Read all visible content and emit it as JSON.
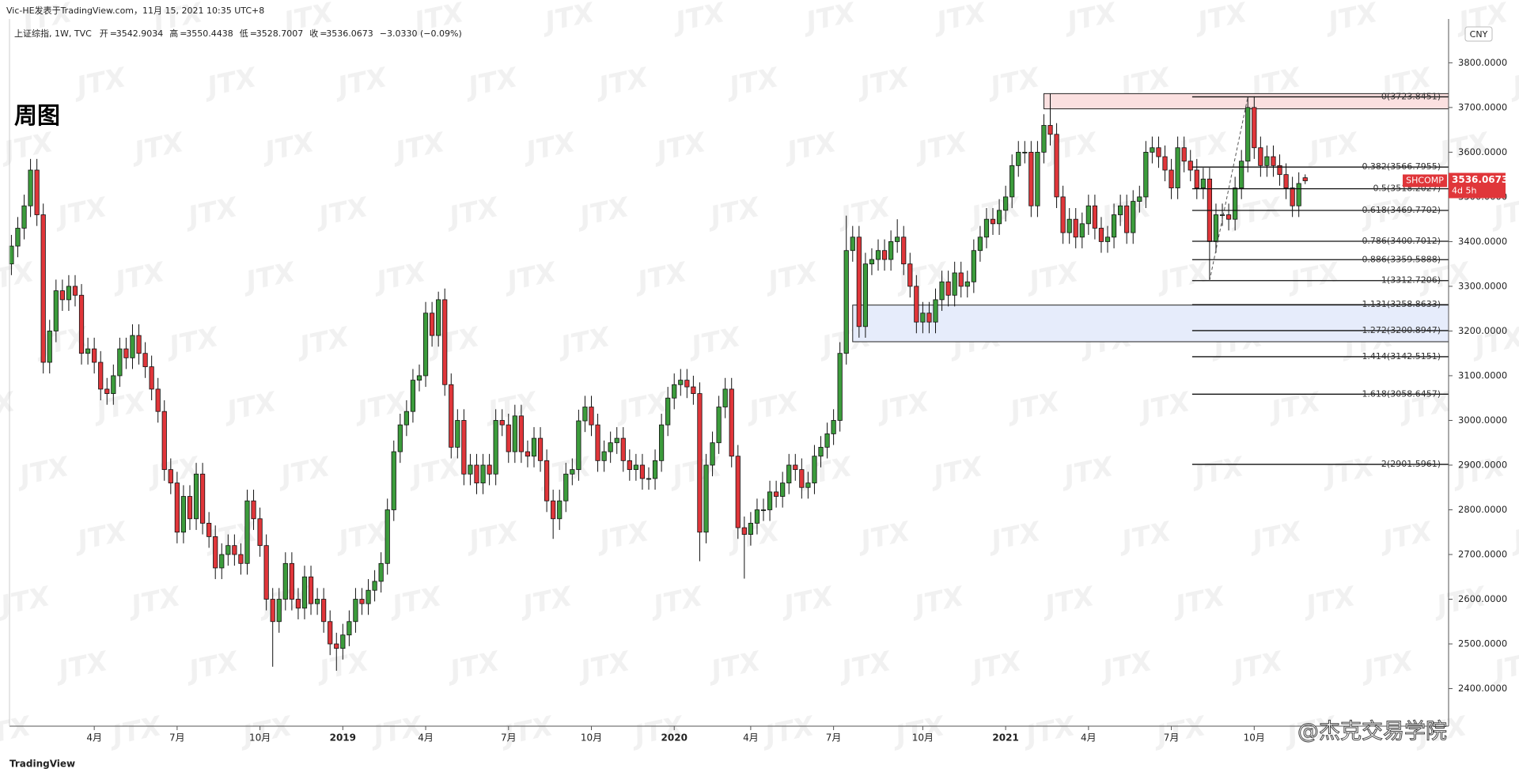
{
  "header": {
    "byline": "Vic-HE发表于TradingView.com，11月 15, 2021 10:35 UTC+8",
    "symbol": "上证综指, 1W, TVC",
    "open_label": "开",
    "high_label": "高",
    "low_label": "低",
    "close_label": "收",
    "change": "−3.0330 (−0.09%)",
    "footer": "TradingView",
    "credit": "@杰克交易学院"
  },
  "watermark": "JTX",
  "chart_data": {
    "type": "candlestick",
    "title": "周图",
    "currency": "CNY",
    "symbol_tag": "SHCOMP",
    "countdown": "4d 5h",
    "up_color": "#3c9c3c",
    "down_color": "#e0363a",
    "wick_color": "#111111",
    "xlim": [
      -0.3,
      225.5
    ],
    "ylim": [
      2316,
      3898
    ],
    "xticks": [
      {
        "value": 13,
        "label": "4月"
      },
      {
        "value": 26,
        "label": "7月"
      },
      {
        "value": 39,
        "label": "10月"
      },
      {
        "value": 52,
        "label": "2019"
      },
      {
        "value": 65,
        "label": "4月"
      },
      {
        "value": 78,
        "label": "7月"
      },
      {
        "value": 91,
        "label": "10月"
      },
      {
        "value": 104,
        "label": "2020"
      },
      {
        "value": 116,
        "label": "4月"
      },
      {
        "value": 129,
        "label": "7月"
      },
      {
        "value": 143,
        "label": "10月"
      },
      {
        "value": 156,
        "label": "2021"
      },
      {
        "value": 169,
        "label": "4月"
      },
      {
        "value": 182,
        "label": "7月"
      },
      {
        "value": 195,
        "label": "10月"
      }
    ],
    "yticks": [
      {
        "value": 2400,
        "label": "2400.0000"
      },
      {
        "value": 2500,
        "label": "2500.0000"
      },
      {
        "value": 2600,
        "label": "2600.0000"
      },
      {
        "value": 2700,
        "label": "2700.0000"
      },
      {
        "value": 2800,
        "label": "2800.0000"
      },
      {
        "value": 2900,
        "label": "2900.0000"
      },
      {
        "value": 3000,
        "label": "3000.0000"
      },
      {
        "value": 3100,
        "label": "3100.0000"
      },
      {
        "value": 3200,
        "label": "3200.0000"
      },
      {
        "value": 3300,
        "label": "3300.0000"
      },
      {
        "value": 3400,
        "label": "3400.0000"
      },
      {
        "value": 3500,
        "label": "3500.0000"
      },
      {
        "value": 3600,
        "label": "3600.0000"
      },
      {
        "value": 3700,
        "label": "3700.0000"
      },
      {
        "value": 3800,
        "label": "3800.0000"
      }
    ],
    "zones": [
      {
        "start": 162,
        "from": 3697,
        "to": 3731,
        "color": "#fbe0e0"
      },
      {
        "start": 132,
        "from": 3176,
        "to": 3258,
        "color": "#e6ecfb"
      }
    ],
    "fib_anchor": [
      188,
      194
    ],
    "fib_levels": [
      {
        "price": 3723.8451,
        "label": "0(3723.8451)"
      },
      {
        "price": 3566.7955,
        "label": "0.382(3566.7955)"
      },
      {
        "price": 3518.2027,
        "label": "0.5(3518.2027)"
      },
      {
        "price": 3469.7702,
        "label": "0.618(3469.7702)"
      },
      {
        "price": 3400.7012,
        "label": "0.786(3400.7012)"
      },
      {
        "price": 3359.5888,
        "label": "0.886(3359.5888)"
      },
      {
        "price": 3312.7206,
        "label": "1(3312.7206)"
      },
      {
        "price": 3258.8633,
        "label": "1.131(3258.8633)"
      },
      {
        "price": 3200.8947,
        "label": "1.272(3200.8947)"
      },
      {
        "price": 3142.5151,
        "label": "1.414(3142.5151)"
      },
      {
        "price": 3058.6457,
        "label": "1.618(3058.6457)"
      },
      {
        "price": 2901.5961,
        "label": "2(2901.5961)"
      }
    ],
    "candles": [
      [
        3350,
        3415,
        3325,
        3390
      ],
      [
        3390,
        3455,
        3365,
        3430
      ],
      [
        3430,
        3505,
        3405,
        3480
      ],
      [
        3480,
        3585,
        3455,
        3560
      ],
      [
        3560,
        3585,
        3435,
        3460
      ],
      [
        3460,
        3485,
        3105,
        3130
      ],
      [
        3130,
        3225,
        3105,
        3200
      ],
      [
        3200,
        3315,
        3175,
        3290
      ],
      [
        3290,
        3315,
        3245,
        3270
      ],
      [
        3270,
        3325,
        3245,
        3300
      ],
      [
        3300,
        3325,
        3255,
        3280
      ],
      [
        3280,
        3305,
        3125,
        3150
      ],
      [
        3150,
        3185,
        3125,
        3160
      ],
      [
        3160,
        3185,
        3105,
        3130
      ],
      [
        3130,
        3155,
        3045,
        3070
      ],
      [
        3070,
        3095,
        3035,
        3060
      ],
      [
        3060,
        3125,
        3035,
        3100
      ],
      [
        3100,
        3185,
        3075,
        3160
      ],
      [
        3160,
        3185,
        3115,
        3140
      ],
      [
        3140,
        3215,
        3115,
        3190
      ],
      [
        3190,
        3215,
        3125,
        3150
      ],
      [
        3150,
        3175,
        3095,
        3120
      ],
      [
        3120,
        3145,
        3045,
        3070
      ],
      [
        3070,
        3095,
        2995,
        3020
      ],
      [
        3020,
        3045,
        2865,
        2890
      ],
      [
        2890,
        2915,
        2835,
        2860
      ],
      [
        2860,
        2885,
        2725,
        2750
      ],
      [
        2750,
        2855,
        2725,
        2830
      ],
      [
        2830,
        2855,
        2755,
        2780
      ],
      [
        2780,
        2905,
        2755,
        2880
      ],
      [
        2880,
        2905,
        2745,
        2770
      ],
      [
        2770,
        2795,
        2715,
        2740
      ],
      [
        2740,
        2765,
        2645,
        2670
      ],
      [
        2670,
        2725,
        2645,
        2700
      ],
      [
        2700,
        2745,
        2675,
        2720
      ],
      [
        2720,
        2745,
        2675,
        2700
      ],
      [
        2700,
        2725,
        2655,
        2680
      ],
      [
        2680,
        2845,
        2655,
        2820
      ],
      [
        2820,
        2845,
        2755,
        2780
      ],
      [
        2780,
        2805,
        2695,
        2720
      ],
      [
        2720,
        2745,
        2575,
        2600
      ],
      [
        2600,
        2625,
        2449,
        2550
      ],
      [
        2550,
        2625,
        2525,
        2600
      ],
      [
        2600,
        2705,
        2575,
        2680
      ],
      [
        2680,
        2705,
        2575,
        2600
      ],
      [
        2600,
        2625,
        2555,
        2580
      ],
      [
        2580,
        2675,
        2555,
        2650
      ],
      [
        2650,
        2675,
        2565,
        2590
      ],
      [
        2590,
        2625,
        2565,
        2600
      ],
      [
        2600,
        2625,
        2525,
        2550
      ],
      [
        2550,
        2575,
        2475,
        2500
      ],
      [
        2500,
        2525,
        2440,
        2490
      ],
      [
        2490,
        2545,
        2465,
        2520
      ],
      [
        2520,
        2575,
        2495,
        2550
      ],
      [
        2550,
        2625,
        2525,
        2600
      ],
      [
        2600,
        2625,
        2565,
        2590
      ],
      [
        2590,
        2645,
        2565,
        2620
      ],
      [
        2620,
        2665,
        2595,
        2640
      ],
      [
        2640,
        2705,
        2615,
        2680
      ],
      [
        2680,
        2825,
        2655,
        2800
      ],
      [
        2800,
        2955,
        2775,
        2930
      ],
      [
        2930,
        3015,
        2905,
        2990
      ],
      [
        2990,
        3045,
        2965,
        3020
      ],
      [
        3020,
        3115,
        2995,
        3090
      ],
      [
        3090,
        3125,
        3065,
        3100
      ],
      [
        3100,
        3265,
        3075,
        3240
      ],
      [
        3240,
        3265,
        3165,
        3190
      ],
      [
        3190,
        3288,
        3165,
        3270
      ],
      [
        3270,
        3295,
        3055,
        3080
      ],
      [
        3080,
        3105,
        2915,
        2940
      ],
      [
        2940,
        3025,
        2915,
        3000
      ],
      [
        3000,
        3025,
        2855,
        2880
      ],
      [
        2880,
        2925,
        2855,
        2900
      ],
      [
        2900,
        2925,
        2835,
        2860
      ],
      [
        2860,
        2925,
        2835,
        2900
      ],
      [
        2900,
        2925,
        2855,
        2880
      ],
      [
        2880,
        3025,
        2855,
        3000
      ],
      [
        3000,
        3025,
        2965,
        2990
      ],
      [
        2990,
        3015,
        2905,
        2930
      ],
      [
        2930,
        3035,
        2905,
        3010
      ],
      [
        3010,
        3035,
        2905,
        2930
      ],
      [
        2930,
        2955,
        2895,
        2920
      ],
      [
        2920,
        2985,
        2895,
        2960
      ],
      [
        2960,
        2985,
        2885,
        2910
      ],
      [
        2910,
        2935,
        2795,
        2820
      ],
      [
        2820,
        2845,
        2735,
        2780
      ],
      [
        2780,
        2845,
        2755,
        2820
      ],
      [
        2820,
        2905,
        2795,
        2880
      ],
      [
        2880,
        2915,
        2855,
        2890
      ],
      [
        2890,
        3024,
        2865,
        2999
      ],
      [
        2999,
        3055,
        2974,
        3030
      ],
      [
        3030,
        3055,
        2965,
        2990
      ],
      [
        2990,
        3015,
        2885,
        2910
      ],
      [
        2910,
        2955,
        2885,
        2930
      ],
      [
        2930,
        2975,
        2905,
        2950
      ],
      [
        2950,
        2985,
        2925,
        2960
      ],
      [
        2960,
        2985,
        2885,
        2910
      ],
      [
        2910,
        2935,
        2865,
        2890
      ],
      [
        2890,
        2925,
        2865,
        2900
      ],
      [
        2900,
        2925,
        2845,
        2870
      ],
      [
        2870,
        2895,
        2845,
        2870
      ],
      [
        2870,
        2935,
        2845,
        2910
      ],
      [
        2910,
        3015,
        2885,
        2990
      ],
      [
        2990,
        3075,
        2965,
        3050
      ],
      [
        3050,
        3105,
        3025,
        3080
      ],
      [
        3080,
        3115,
        3055,
        3090
      ],
      [
        3090,
        3115,
        3050,
        3075
      ],
      [
        3075,
        3100,
        3035,
        3060
      ],
      [
        3060,
        3085,
        2685,
        2750
      ],
      [
        2750,
        2925,
        2725,
        2900
      ],
      [
        2900,
        2975,
        2875,
        2950
      ],
      [
        2950,
        3055,
        2925,
        3030
      ],
      [
        3030,
        3095,
        3005,
        3070
      ],
      [
        3070,
        3095,
        2895,
        2920
      ],
      [
        2920,
        2945,
        2735,
        2760
      ],
      [
        2760,
        2785,
        2646,
        2745
      ],
      [
        2745,
        2795,
        2720,
        2770
      ],
      [
        2770,
        2825,
        2745,
        2800
      ],
      [
        2800,
        2825,
        2775,
        2800
      ],
      [
        2800,
        2865,
        2775,
        2840
      ],
      [
        2840,
        2865,
        2805,
        2830
      ],
      [
        2830,
        2885,
        2805,
        2860
      ],
      [
        2860,
        2925,
        2835,
        2900
      ],
      [
        2900,
        2925,
        2865,
        2890
      ],
      [
        2890,
        2915,
        2825,
        2850
      ],
      [
        2850,
        2885,
        2825,
        2860
      ],
      [
        2860,
        2945,
        2835,
        2920
      ],
      [
        2920,
        2965,
        2895,
        2940
      ],
      [
        2940,
        2995,
        2915,
        2970
      ],
      [
        2970,
        3025,
        2945,
        3000
      ],
      [
        3000,
        3175,
        2975,
        3150
      ],
      [
        3150,
        3458,
        3125,
        3380
      ],
      [
        3380,
        3435,
        3355,
        3410
      ],
      [
        3410,
        3435,
        3185,
        3210
      ],
      [
        3210,
        3375,
        3185,
        3350
      ],
      [
        3350,
        3385,
        3325,
        3360
      ],
      [
        3360,
        3405,
        3335,
        3380
      ],
      [
        3380,
        3405,
        3335,
        3360
      ],
      [
        3360,
        3425,
        3335,
        3400
      ],
      [
        3400,
        3450,
        3375,
        3410
      ],
      [
        3410,
        3435,
        3325,
        3350
      ],
      [
        3350,
        3375,
        3275,
        3300
      ],
      [
        3300,
        3325,
        3195,
        3220
      ],
      [
        3220,
        3265,
        3195,
        3240
      ],
      [
        3240,
        3265,
        3195,
        3220
      ],
      [
        3220,
        3295,
        3195,
        3270
      ],
      [
        3270,
        3335,
        3245,
        3310
      ],
      [
        3310,
        3335,
        3255,
        3280
      ],
      [
        3280,
        3355,
        3255,
        3330
      ],
      [
        3330,
        3355,
        3275,
        3300
      ],
      [
        3300,
        3335,
        3275,
        3310
      ],
      [
        3310,
        3405,
        3285,
        3380
      ],
      [
        3380,
        3435,
        3355,
        3410
      ],
      [
        3410,
        3475,
        3385,
        3450
      ],
      [
        3450,
        3475,
        3415,
        3440
      ],
      [
        3440,
        3495,
        3415,
        3470
      ],
      [
        3470,
        3525,
        3445,
        3500
      ],
      [
        3500,
        3595,
        3475,
        3570
      ],
      [
        3570,
        3625,
        3545,
        3600
      ],
      [
        3600,
        3625,
        3575,
        3600
      ],
      [
        3600,
        3625,
        3455,
        3480
      ],
      [
        3480,
        3625,
        3455,
        3600
      ],
      [
        3600,
        3685,
        3575,
        3660
      ],
      [
        3660,
        3731,
        3615,
        3640
      ],
      [
        3640,
        3665,
        3475,
        3500
      ],
      [
        3500,
        3525,
        3395,
        3420
      ],
      [
        3420,
        3475,
        3395,
        3450
      ],
      [
        3450,
        3475,
        3385,
        3410
      ],
      [
        3410,
        3465,
        3385,
        3440
      ],
      [
        3440,
        3505,
        3415,
        3480
      ],
      [
        3480,
        3505,
        3405,
        3430
      ],
      [
        3430,
        3455,
        3375,
        3400
      ],
      [
        3400,
        3435,
        3375,
        3410
      ],
      [
        3410,
        3485,
        3385,
        3460
      ],
      [
        3460,
        3505,
        3435,
        3480
      ],
      [
        3480,
        3505,
        3395,
        3420
      ],
      [
        3420,
        3515,
        3395,
        3490
      ],
      [
        3490,
        3525,
        3465,
        3500
      ],
      [
        3500,
        3625,
        3475,
        3600
      ],
      [
        3600,
        3635,
        3575,
        3610
      ],
      [
        3610,
        3635,
        3565,
        3590
      ],
      [
        3590,
        3615,
        3535,
        3560
      ],
      [
        3560,
        3585,
        3495,
        3520
      ],
      [
        3520,
        3635,
        3495,
        3610
      ],
      [
        3610,
        3635,
        3555,
        3580
      ],
      [
        3580,
        3605,
        3535,
        3560
      ],
      [
        3560,
        3585,
        3495,
        3520
      ],
      [
        3520,
        3565,
        3495,
        3540
      ],
      [
        3540,
        3565,
        3313,
        3400
      ],
      [
        3400,
        3485,
        3375,
        3460
      ],
      [
        3460,
        3485,
        3435,
        3460
      ],
      [
        3460,
        3485,
        3425,
        3450
      ],
      [
        3450,
        3545,
        3425,
        3520
      ],
      [
        3520,
        3605,
        3495,
        3580
      ],
      [
        3580,
        3724,
        3555,
        3700
      ],
      [
        3700,
        3725,
        3585,
        3610
      ],
      [
        3610,
        3635,
        3545,
        3570
      ],
      [
        3570,
        3615,
        3545,
        3590
      ],
      [
        3590,
        3615,
        3545,
        3570
      ],
      [
        3570,
        3595,
        3525,
        3550
      ],
      [
        3550,
        3575,
        3495,
        3520
      ],
      [
        3520,
        3545,
        3455,
        3480
      ],
      [
        3480,
        3555,
        3455,
        3530
      ],
      [
        3542.9034,
        3550.4438,
        3528.7007,
        3536.0673
      ]
    ]
  }
}
